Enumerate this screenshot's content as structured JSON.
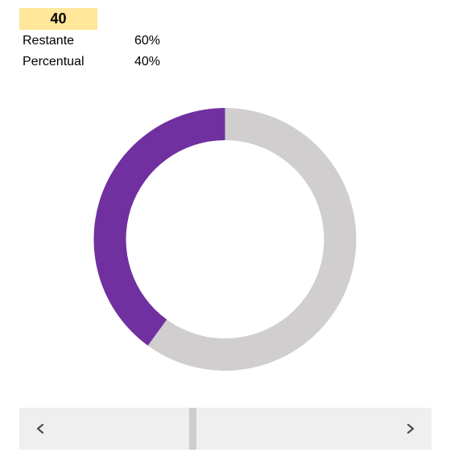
{
  "cells": {
    "value": "40",
    "restante_label": "Restante",
    "restante_pct": "60%",
    "percentual_label": "Percentual",
    "percentual_pct": "40%"
  },
  "colors": {
    "highlight": "#ffe699",
    "accent": "#7030a0",
    "remaining": "#d0cece",
    "scrollbar_track": "#efefef",
    "scrollbar_thumb": "#cdcdcd"
  },
  "chart_data": {
    "type": "pie",
    "style": "doughnut",
    "title": "",
    "categories": [
      "Restante",
      "Percentual"
    ],
    "values": [
      60,
      40
    ],
    "colors": [
      "#d0cece",
      "#7030a0"
    ],
    "start_angle_deg": 0,
    "direction": "clockwise",
    "legend": "none"
  },
  "scrollbar": {
    "left_icon": "chevron-left-icon",
    "right_icon": "chevron-right-icon",
    "position": 0.42
  }
}
